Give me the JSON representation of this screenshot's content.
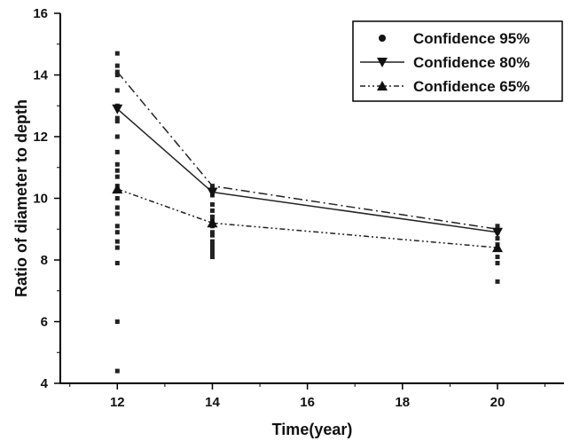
{
  "chart_data": {
    "type": "line",
    "xlabel": "Time(year)",
    "ylabel": "Ratio of diameter to depth",
    "xlim": [
      10.8,
      21.4
    ],
    "ylim": [
      4,
      16
    ],
    "xticks": [
      12,
      14,
      16,
      18,
      20
    ],
    "yticks": [
      4,
      6,
      8,
      10,
      12,
      14,
      16
    ],
    "grid": false,
    "legend_position": "top-right",
    "scatter_points": {
      "x": [
        12,
        12,
        12,
        12,
        12,
        12,
        12,
        12,
        12,
        12,
        12,
        12,
        12,
        12,
        12,
        12,
        12,
        12,
        12,
        12,
        12,
        12,
        12,
        12,
        14,
        14,
        14,
        14,
        14,
        14,
        14,
        14,
        14,
        14,
        14,
        14,
        14,
        14,
        14,
        20,
        20,
        20,
        20,
        20,
        20,
        20
      ],
      "y": [
        14.7,
        14.3,
        14.1,
        14.0,
        13.5,
        13.0,
        12.6,
        12.5,
        12.0,
        11.5,
        11.1,
        10.9,
        10.7,
        10.4,
        10.0,
        9.7,
        9.5,
        9.1,
        8.9,
        8.6,
        8.4,
        7.9,
        6.0,
        4.4,
        10.4,
        10.1,
        9.8,
        9.6,
        9.4,
        9.3,
        9.1,
        8.9,
        8.8,
        8.6,
        8.5,
        8.4,
        8.3,
        8.2,
        8.1,
        9.1,
        8.9,
        8.7,
        8.5,
        8.1,
        7.9,
        7.3
      ]
    },
    "series": [
      {
        "name": "Confidence 95%",
        "x": [
          12,
          14,
          20
        ],
        "y": [
          14.1,
          10.4,
          9.0
        ],
        "marker": "circle",
        "line": "dash-dot"
      },
      {
        "name": "Confidence 80%",
        "x": [
          12,
          14,
          20
        ],
        "y": [
          12.9,
          10.2,
          8.9
        ],
        "marker": "triangle-down",
        "line": "solid"
      },
      {
        "name": "Confidence 65%",
        "x": [
          12,
          14,
          20
        ],
        "y": [
          10.3,
          9.2,
          8.4
        ],
        "marker": "triangle-up",
        "line": "dash-dot-dot"
      }
    ]
  }
}
